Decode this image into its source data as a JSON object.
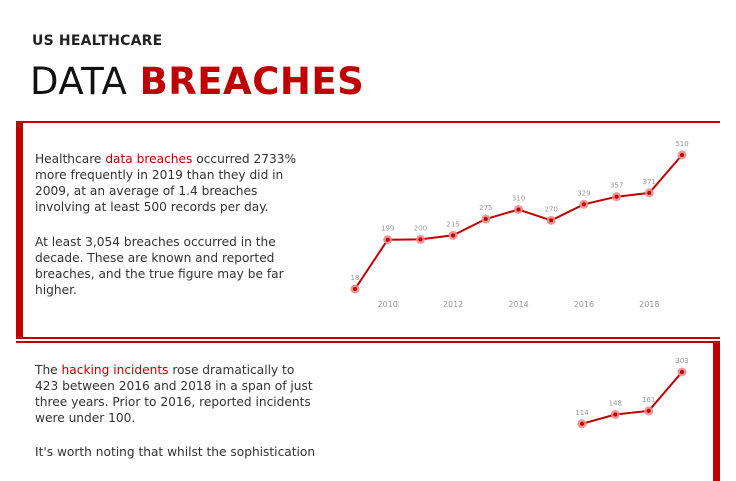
{
  "header": {
    "kicker": "US HEALTHCARE",
    "title_dark": "DATA",
    "title_red": "BREACHES"
  },
  "section1": {
    "p1_pre": "Healthcare ",
    "p1_link": "data breaches",
    "p1_post": " occurred 2733% more frequently in 2019 than they did in 2009, at an average of 1.4 breaches involving at least 500 records per day.",
    "p2": "At least 3,054 breaches occurred in the decade. These are known and reported breaches, and the true figure may be far higher."
  },
  "section2": {
    "p1_pre": "The ",
    "p1_link": "hacking incidents",
    "p1_post": " rose dramatically to 423 between 2016 and 2018 in a span of just three years. Prior to 2016, reported incidents were under 100.",
    "p2": "It's worth noting that whilst the sophistication"
  },
  "colors": {
    "accent": "#c00000",
    "marker": "#f08a8a"
  },
  "chart_data": [
    {
      "type": "line",
      "x": [
        2009,
        2010,
        2011,
        2012,
        2013,
        2014,
        2015,
        2016,
        2017,
        2018,
        2019
      ],
      "values": [
        18,
        199,
        200,
        215,
        275,
        310,
        270,
        329,
        357,
        371,
        510
      ],
      "x_ticks": [
        "2010",
        "2012",
        "2014",
        "2016",
        "2018"
      ],
      "data_labels": true,
      "grid": false,
      "ylim": [
        18,
        510
      ]
    },
    {
      "type": "line",
      "x": [
        2016,
        2017,
        2018,
        2019
      ],
      "values": [
        114,
        148,
        161,
        303
      ],
      "data_labels": true,
      "grid": false,
      "ylim": [
        0,
        303
      ]
    }
  ]
}
